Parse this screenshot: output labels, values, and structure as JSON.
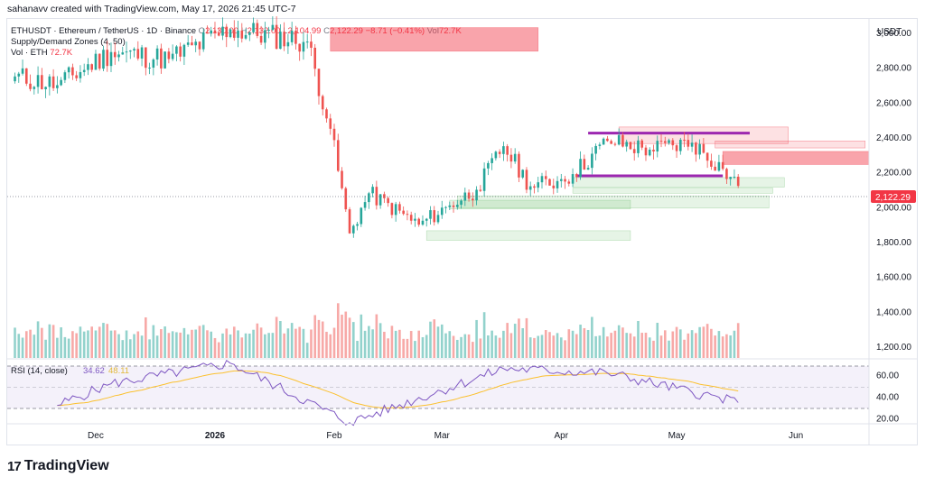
{
  "header": {
    "created_by": "sahanavv created with TradingView.com, May 17, 2026 21:45 UTC-7"
  },
  "legend": {
    "symbol": "ETHUSDT · Ethereum / TetherUS · 1D · Binance",
    "o_label": "O",
    "o_value": "2,130.00",
    "h_label": "H",
    "h_value": "2,132.00",
    "l_label": "L",
    "l_value": "2,104.99",
    "c_label": "C",
    "c_value": "2,122.29",
    "change": "−8.71 (−0.41%)",
    "vol_label": "Vol",
    "vol_value": "72.7K",
    "indicator": "Supply/Demand Zones (4, 50)",
    "vol_indicator": "Vol · ETH",
    "vol_indicator_value": "72.7K"
  },
  "rsi_legend": {
    "label": "RSI (14, close)",
    "value": "34.62",
    "ma_value": "48.11"
  },
  "price_axis": {
    "currency": "USDT",
    "ticks": [
      "3,000.00",
      "2,800.00",
      "2,600.00",
      "2,400.00",
      "2,200.00",
      "2,000.00",
      "1,800.00",
      "1,600.00",
      "1,400.00",
      "1,200.00"
    ],
    "last_price": "2,122.29"
  },
  "rsi_axis": {
    "ticks": [
      "60.00",
      "40.00",
      "20.00"
    ]
  },
  "time_axis": {
    "labels": [
      "Dec",
      "2026",
      "Feb",
      "Mar",
      "Apr",
      "May",
      "Jun"
    ]
  },
  "brand": {
    "name": "TradingView",
    "logo_text": "17"
  },
  "colors": {
    "up": "#26a69a",
    "down": "#ef5350",
    "supply": "#f23645",
    "demand": "#4caf50",
    "level": "#9c27b0",
    "rsi": "#7e57c2",
    "rsi_ma": "#fbc02d"
  },
  "chart_data": {
    "type": "candlestick",
    "symbol": "ETHUSDT",
    "interval": "1D",
    "last_close": 2122.29,
    "ylim": [
      1130,
      3080
    ],
    "x_range": [
      "2025-11-08",
      "2026-06-20"
    ],
    "key_closes": [
      {
        "date": "2025-11-10",
        "close": 2750
      },
      {
        "date": "2025-11-21",
        "close": 2700
      },
      {
        "date": "2025-12-05",
        "close": 2890
      },
      {
        "date": "2025-12-20",
        "close": 2850
      },
      {
        "date": "2026-01-05",
        "close": 3020
      },
      {
        "date": "2026-01-25",
        "close": 2950
      },
      {
        "date": "2026-01-31",
        "close": 2450
      },
      {
        "date": "2026-02-05",
        "close": 1850
      },
      {
        "date": "2026-02-10",
        "close": 2080
      },
      {
        "date": "2026-02-23",
        "close": 1900
      },
      {
        "date": "2026-03-03",
        "close": 2010
      },
      {
        "date": "2026-03-10",
        "close": 2100
      },
      {
        "date": "2026-03-17",
        "close": 2350
      },
      {
        "date": "2026-03-24",
        "close": 2120
      },
      {
        "date": "2026-03-31",
        "close": 2150
      },
      {
        "date": "2026-04-04",
        "close": 2190
      },
      {
        "date": "2026-04-13",
        "close": 2380
      },
      {
        "date": "2026-04-24",
        "close": 2330
      },
      {
        "date": "2026-05-05",
        "close": 2370
      },
      {
        "date": "2026-05-13",
        "close": 2220
      },
      {
        "date": "2026-05-17",
        "close": 2122.29
      }
    ],
    "supply_zones": [
      {
        "from": "2026-01-31",
        "to": "2026-03-26",
        "low": 2895,
        "high": 3030
      },
      {
        "from": "2026-04-16",
        "to": "2026-05-30",
        "low": 2365,
        "high": 2460
      },
      {
        "from": "2026-05-11",
        "to": "2026-06-19",
        "low": 2340,
        "high": 2380
      },
      {
        "from": "2026-05-13",
        "to": "2026-06-29",
        "low": 2245,
        "high": 2320
      }
    ],
    "demand_zones": [
      {
        "from": "2026-04-04",
        "to": "2026-05-29",
        "low": 2115,
        "high": 2170
      },
      {
        "from": "2026-04-04",
        "to": "2026-05-26",
        "low": 2080,
        "high": 2110
      },
      {
        "from": "2026-03-05",
        "to": "2026-05-25",
        "low": 1995,
        "high": 2065
      },
      {
        "from": "2026-03-03",
        "to": "2026-04-19",
        "low": 1990,
        "high": 2040
      },
      {
        "from": "2026-02-25",
        "to": "2026-04-19",
        "low": 1810,
        "high": 1865
      }
    ],
    "levels": [
      {
        "from": "2026-04-08",
        "to": "2026-05-20",
        "price": 2425
      },
      {
        "from": "2026-04-05",
        "to": "2026-05-13",
        "price": 2180
      }
    ],
    "volume_ylim": [
      0,
      115
    ],
    "rsi": {
      "ylim": [
        15,
        75
      ],
      "bands": [
        70,
        50,
        30
      ],
      "key_values": [
        {
          "date": "2025-11-21",
          "value": 32
        },
        {
          "date": "2025-12-05",
          "value": 52
        },
        {
          "date": "2026-01-05",
          "value": 71
        },
        {
          "date": "2026-02-05",
          "value": 16
        },
        {
          "date": "2026-03-17",
          "value": 66
        },
        {
          "date": "2026-04-13",
          "value": 62
        },
        {
          "date": "2026-05-17",
          "value": 34.62
        }
      ],
      "ma_last": 48.11
    }
  }
}
